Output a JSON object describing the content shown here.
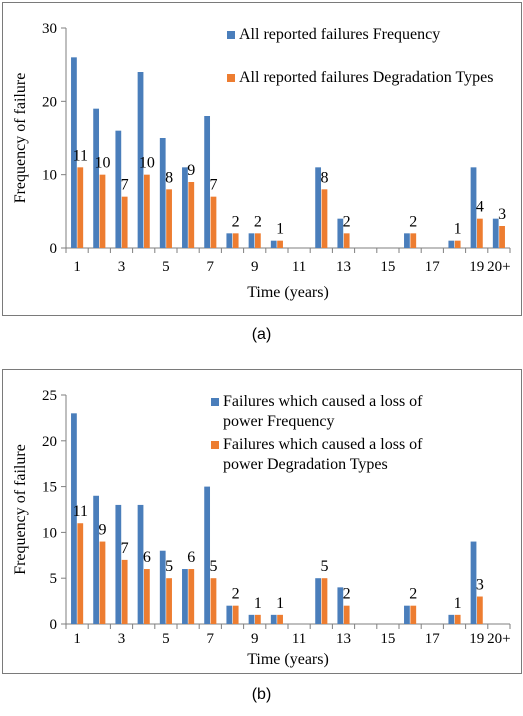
{
  "chart_data": [
    {
      "type": "bar",
      "panel_label": "(a)",
      "xlabel": "Time (years)",
      "ylabel": "Frequency of failure",
      "ylim": [
        0,
        30
      ],
      "yticks": [
        0,
        10,
        20,
        30
      ],
      "categories": [
        "1",
        "2",
        "3",
        "4",
        "5",
        "6",
        "7",
        "8",
        "9",
        "10",
        "11",
        "12",
        "13",
        "14",
        "15",
        "16",
        "17",
        "18",
        "19",
        "20+"
      ],
      "xtick_labels": [
        {
          "label": "1",
          "at": "1"
        },
        {
          "label": "3",
          "at": "3"
        },
        {
          "label": "5",
          "at": "5"
        },
        {
          "label": "7",
          "at": "7"
        },
        {
          "label": "9",
          "at": "9"
        },
        {
          "label": "11",
          "at": "11"
        },
        {
          "label": "13",
          "at": "13"
        },
        {
          "label": "15",
          "at": "15"
        },
        {
          "label": "17",
          "at": "17"
        },
        {
          "label": "19",
          "at": "19"
        },
        {
          "label": "20+",
          "at": "20+"
        }
      ],
      "grid": false,
      "legend_position": "top-right",
      "series": [
        {
          "name": "All reported failures Frequency",
          "color": "#4a7ebb",
          "values": [
            26,
            19,
            16,
            24,
            15,
            11,
            18,
            2,
            2,
            1,
            0,
            11,
            4,
            0,
            0,
            2,
            0,
            1,
            11,
            4
          ],
          "show_labels": false
        },
        {
          "name": "All reported failures Degradation Types",
          "color": "#ed7d31",
          "values": [
            11,
            10,
            7,
            10,
            8,
            9,
            7,
            2,
            2,
            1,
            0,
            8,
            2,
            0,
            0,
            2,
            0,
            1,
            4,
            3
          ],
          "show_labels": true
        }
      ]
    },
    {
      "type": "bar",
      "panel_label": "(b)",
      "xlabel": "Time (years)",
      "ylabel": "Frequency of failure",
      "ylim": [
        0,
        25
      ],
      "yticks": [
        0,
        5,
        10,
        15,
        20,
        25
      ],
      "categories": [
        "1",
        "2",
        "3",
        "4",
        "5",
        "6",
        "7",
        "8",
        "9",
        "10",
        "11",
        "12",
        "13",
        "14",
        "15",
        "16",
        "17",
        "18",
        "19",
        "20+"
      ],
      "xtick_labels": [
        {
          "label": "1",
          "at": "1"
        },
        {
          "label": "3",
          "at": "3"
        },
        {
          "label": "5",
          "at": "5"
        },
        {
          "label": "7",
          "at": "7"
        },
        {
          "label": "9",
          "at": "9"
        },
        {
          "label": "11",
          "at": "11"
        },
        {
          "label": "13",
          "at": "13"
        },
        {
          "label": "15",
          "at": "15"
        },
        {
          "label": "17",
          "at": "17"
        },
        {
          "label": "19",
          "at": "19"
        },
        {
          "label": "20+",
          "at": "20+"
        }
      ],
      "grid": false,
      "legend_position": "top-right",
      "series": [
        {
          "name": "Failures which caused a loss of power Frequency",
          "color": "#4a7ebb",
          "values": [
            23,
            14,
            13,
            13,
            8,
            6,
            15,
            2,
            1,
            1,
            0,
            5,
            4,
            0,
            0,
            2,
            0,
            1,
            9,
            0
          ],
          "show_labels": false
        },
        {
          "name": "Failures which caused a loss of power Degradation Types",
          "color": "#ed7d31",
          "values": [
            11,
            9,
            7,
            6,
            5,
            6,
            5,
            2,
            1,
            1,
            0,
            5,
            2,
            0,
            0,
            2,
            0,
            1,
            3,
            0
          ],
          "show_labels": true
        }
      ]
    }
  ]
}
